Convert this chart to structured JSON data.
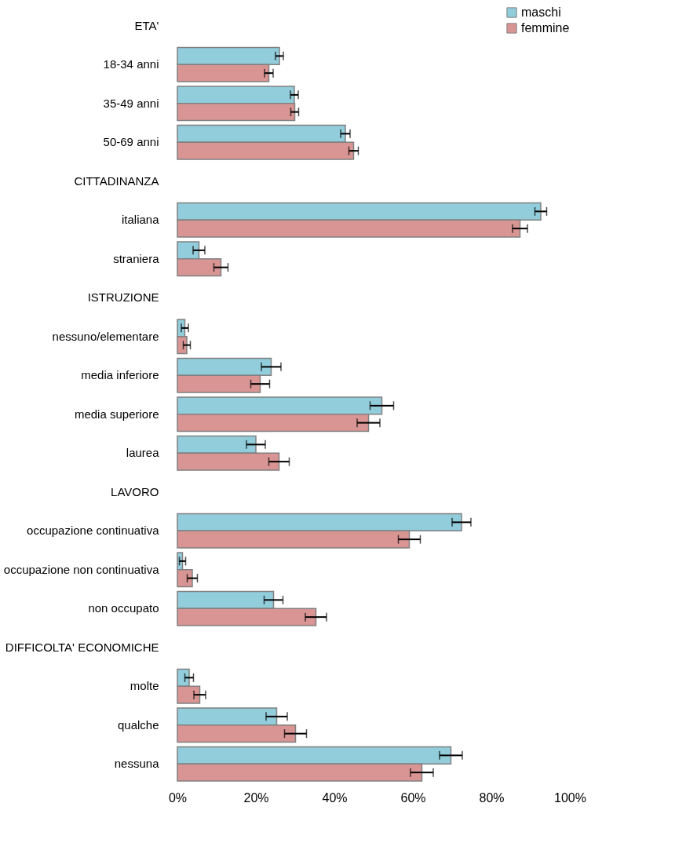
{
  "chart_data": {
    "type": "bar",
    "orientation": "horizontal",
    "categories": [
      "ETA'",
      "18-34 anni",
      "35-49 anni",
      "50-69 anni",
      "CITTADINANZA",
      "italiana",
      "straniera",
      "ISTRUZIONE",
      "nessuno/elementare",
      "media inferiore",
      "media superiore",
      "laurea",
      "LAVORO",
      "occupazione continuativa",
      "occupazione non continuativa",
      "non occupato",
      "DIFFICOLTA' ECONOMICHE",
      "molte",
      "qualche",
      "nessuna"
    ],
    "series": [
      {
        "name": "maschi",
        "color": "#92cddc",
        "values": [
          null,
          26,
          29.8,
          42.8,
          null,
          92.6,
          5.5,
          null,
          1.9,
          23.9,
          52.1,
          20.0,
          null,
          72.4,
          1.3,
          24.5,
          null,
          3.0,
          25.3,
          69.7
        ],
        "errors": [
          null,
          1,
          1,
          1.2,
          null,
          1.5,
          1.5,
          null,
          0.9,
          2.5,
          3,
          2.4,
          null,
          2.4,
          0.8,
          2.4,
          null,
          1.1,
          2.7,
          2.9
        ]
      },
      {
        "name": "femmine",
        "color": "#d99594",
        "values": [
          null,
          23.3,
          29.9,
          44.9,
          null,
          87.3,
          11.1,
          null,
          2.4,
          21.1,
          48.7,
          25.9,
          null,
          59.1,
          3.8,
          35.3,
          null,
          5.7,
          30.1,
          62.3
        ],
        "errors": [
          null,
          1.1,
          1,
          1.2,
          null,
          1.9,
          1.8,
          null,
          0.9,
          2.4,
          2.9,
          2.6,
          null,
          2.8,
          1.3,
          2.7,
          null,
          1.5,
          2.8,
          2.9
        ]
      }
    ],
    "xlim": [
      0,
      100
    ],
    "xticks": [
      {
        "value": 0,
        "label": "0%"
      },
      {
        "value": 20,
        "label": "20%"
      },
      {
        "value": 40,
        "label": "40%"
      },
      {
        "value": 60,
        "label": "60%"
      },
      {
        "value": 80,
        "label": "80%"
      },
      {
        "value": 100,
        "label": "100%"
      }
    ],
    "grid": false,
    "legend": "top right"
  }
}
